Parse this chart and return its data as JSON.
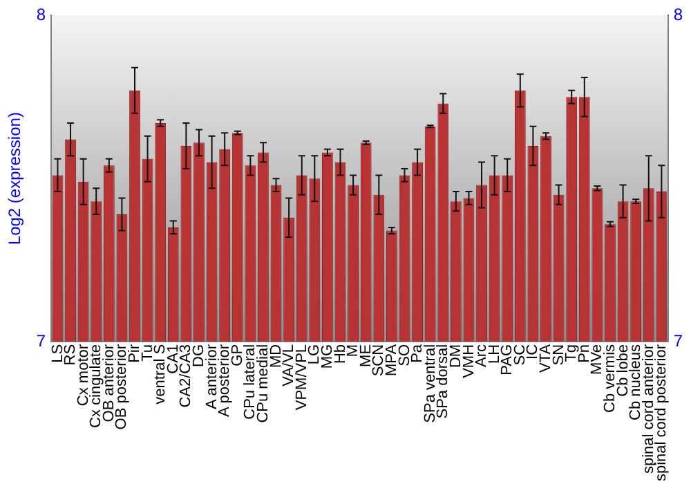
{
  "chart_data": {
    "type": "bar",
    "ylabel": "Log2 (expression)",
    "categories": [
      "LS",
      "RS",
      "Cx motor",
      "Cx cingulate",
      "OB anterior",
      "OB posterior",
      "Pir",
      "Tu",
      "ventral S",
      "CA1",
      "CA2/CA3",
      "DG",
      "A anterior",
      "A posterior",
      "GP",
      "CPu lateral",
      "CPu medial",
      "MD",
      "VA/VL",
      "VPM/VPL",
      "LG",
      "MG",
      "Hb",
      "M",
      "ME",
      "SCN",
      "MPA",
      "SO",
      "Pa",
      "SPa ventral",
      "SPa dorsal",
      "DM",
      "VMH",
      "Arc",
      "LH",
      "PAG",
      "SC",
      "IC",
      "VTA",
      "SN",
      "Tg",
      "Pn",
      "MVe",
      "Cb vermis",
      "Cb lobe",
      "Cb nucleus",
      "spinal cord anterior",
      "spinal cord posterior"
    ],
    "values": [
      7.51,
      7.62,
      7.49,
      7.43,
      7.54,
      7.39,
      7.77,
      7.56,
      7.67,
      7.35,
      7.6,
      7.61,
      7.55,
      7.59,
      7.64,
      7.54,
      7.58,
      7.48,
      7.38,
      7.51,
      7.5,
      7.58,
      7.55,
      7.48,
      7.61,
      7.45,
      7.34,
      7.51,
      7.55,
      7.66,
      7.73,
      7.43,
      7.44,
      7.48,
      7.51,
      7.51,
      7.77,
      7.6,
      7.63,
      7.45,
      7.75,
      7.75,
      7.47,
      7.36,
      7.43,
      7.43,
      7.47,
      7.46
    ],
    "errors": [
      0.05,
      0.05,
      0.07,
      0.04,
      0.02,
      0.05,
      0.07,
      0.07,
      0.01,
      0.02,
      0.07,
      0.04,
      0.08,
      0.05,
      0.005,
      0.03,
      0.03,
      0.02,
      0.06,
      0.06,
      0.07,
      0.01,
      0.04,
      0.03,
      0.005,
      0.06,
      0.01,
      0.02,
      0.04,
      0.003,
      0.03,
      0.03,
      0.02,
      0.07,
      0.06,
      0.05,
      0.05,
      0.06,
      0.01,
      0.03,
      0.02,
      0.06,
      0.007,
      0.007,
      0.05,
      0.006,
      0.1,
      0.08
    ],
    "color": "#b83434",
    "ylim": [
      7,
      8
    ],
    "yticks": [
      7,
      8
    ],
    "y2lim": [
      7,
      8
    ],
    "y2ticks": [
      7,
      8
    ],
    "grid": false,
    "legend": false
  }
}
